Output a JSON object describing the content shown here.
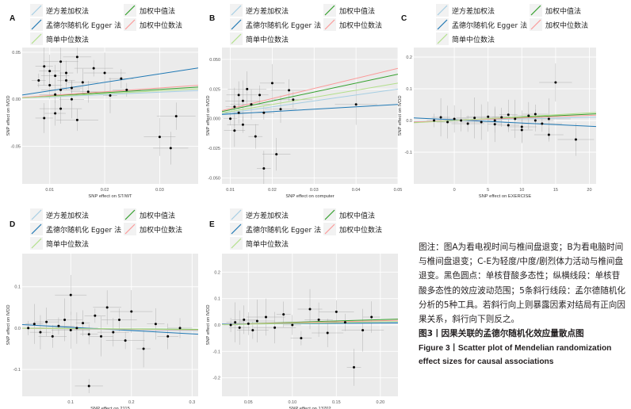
{
  "legend": {
    "items": [
      {
        "label": "逆方差加权法",
        "color": "#a6cee3"
      },
      {
        "label": "加权中值法",
        "color": "#33a02c"
      },
      {
        "label": "孟德尔随机化 Egger 法",
        "color": "#1f78b4"
      },
      {
        "label": "加权中位数法",
        "color": "#fb9a99"
      },
      {
        "label": "简单中位数法",
        "color": "#b2df8a"
      }
    ]
  },
  "panels": [
    {
      "letter": "A",
      "ylabel": "SNP effect on IVDD",
      "xlabel": "SNP effect on ST/WT",
      "xticks": [
        "0.01",
        "0.02",
        "0.03"
      ],
      "yticks": [
        "0.05",
        "0.00",
        "-0.05"
      ]
    },
    {
      "letter": "B",
      "ylabel": "SNP effect on IVDD",
      "xlabel": "SNP effect on computer",
      "xticks": [
        "0.01",
        "0.02",
        "0.03",
        "0.04",
        "0.05"
      ],
      "yticks": [
        "0.050",
        "0.025",
        "0.000",
        "-0.025",
        "-0.050"
      ]
    },
    {
      "letter": "C",
      "ylabel": "SNP effect on IVDD",
      "xlabel": "SNP effect on EXERCISE",
      "xticks": [
        "0",
        "5",
        "10",
        "15",
        "20"
      ],
      "yticks": [
        "0.2",
        "0.1",
        "0.0",
        "-0.1"
      ]
    },
    {
      "letter": "D",
      "ylabel": "SNP effect on IVDD",
      "xlabel": "SNP effect on 2115",
      "xticks": [
        "0.1",
        "0.2",
        "0.3"
      ],
      "yticks": [
        "0.1",
        "0.0",
        "-0.1"
      ]
    },
    {
      "letter": "E",
      "ylabel": "SNP effect on IVDD",
      "xlabel": "SNP effect on 13702",
      "xticks": [
        "0.05",
        "0.10",
        "0.15",
        "0.20"
      ],
      "yticks": [
        "0.2",
        "0.1",
        "0.0",
        "-0.1",
        "-0.2"
      ]
    }
  ],
  "caption": {
    "note": "图注：图A为看电视时间与椎间盘退变；B为看电脑时间与椎间盘退变；C-E为轻度/中度/剧烈体力活动与椎间盘退变。黑色圆点：单核苷酸多态性；纵横线段：单核苷酸多态性的效应波动范围；5条斜行线段：孟尔德随机化分析的5种工具。若斜行向上则暴露因素对结局有正向因果关系，斜行向下则反之。",
    "title_cn": "图3丨因果关联的孟德尔随机化效应量散点图",
    "title_en": "Figure 3丨Scatter plot of Mendelian randomization effect sizes for causal associations"
  },
  "chart_data": [
    {
      "type": "scatter",
      "panel": "A",
      "xlabel": "SNP effect on ST/WT",
      "ylabel": "SNP effect on IVDD",
      "xlim": [
        0.005,
        0.037
      ],
      "ylim": [
        -0.09,
        0.055
      ],
      "points": [
        [
          0.008,
          0.02
        ],
        [
          0.009,
          0.035
        ],
        [
          0.01,
          0.03
        ],
        [
          0.01,
          0.015
        ],
        [
          0.011,
          0.025
        ],
        [
          0.011,
          0.005
        ],
        [
          0.012,
          0.04
        ],
        [
          0.012,
          0.01
        ],
        [
          0.012,
          -0.01
        ],
        [
          0.013,
          0.028
        ],
        [
          0.013,
          0.02
        ],
        [
          0.014,
          0.012
        ],
        [
          0.014,
          0.0
        ],
        [
          0.015,
          0.045
        ],
        [
          0.016,
          0.018
        ],
        [
          0.017,
          0.008
        ],
        [
          0.018,
          0.033
        ],
        [
          0.02,
          0.028
        ],
        [
          0.021,
          0.004
        ],
        [
          0.009,
          -0.02
        ],
        [
          0.011,
          -0.015
        ],
        [
          0.023,
          0.022
        ],
        [
          0.024,
          0.01
        ],
        [
          0.03,
          -0.04
        ],
        [
          0.032,
          -0.052
        ],
        [
          0.033,
          -0.018
        ],
        [
          0.015,
          -0.022
        ]
      ],
      "lines": [
        {
          "name": "逆方差加权法",
          "slope": 0.25,
          "intercept": 0.0
        },
        {
          "name": "加权中值法",
          "slope": 0.35,
          "intercept": 0.0
        },
        {
          "name": "孟德尔随机化 Egger 法",
          "slope": 0.9,
          "intercept": 0.0
        },
        {
          "name": "加权中位数法",
          "slope": 0.4,
          "intercept": 0.0
        },
        {
          "name": "简单中位数法",
          "slope": 0.3,
          "intercept": 0.0
        }
      ]
    },
    {
      "type": "scatter",
      "panel": "B",
      "xlabel": "SNP effect on computer",
      "ylabel": "SNP effect on IVDD",
      "xlim": [
        0.008,
        0.05
      ],
      "ylim": [
        -0.055,
        0.06
      ],
      "points": [
        [
          0.01,
          0.0
        ],
        [
          0.011,
          0.01
        ],
        [
          0.011,
          -0.01
        ],
        [
          0.012,
          0.02
        ],
        [
          0.012,
          0.005
        ],
        [
          0.013,
          -0.005
        ],
        [
          0.013,
          0.015
        ],
        [
          0.014,
          0.025
        ],
        [
          0.015,
          0.012
        ],
        [
          0.016,
          -0.015
        ],
        [
          0.017,
          0.02
        ],
        [
          0.018,
          0.005
        ],
        [
          0.02,
          0.03
        ],
        [
          0.021,
          -0.03
        ],
        [
          0.022,
          0.008
        ],
        [
          0.024,
          0.024
        ],
        [
          0.025,
          0.016
        ],
        [
          0.04,
          0.012
        ],
        [
          0.018,
          -0.042
        ]
      ],
      "lines": [
        {
          "name": "逆方差加权法",
          "slope": 0.5,
          "intercept": 0.0
        },
        {
          "name": "加权中值法",
          "slope": 0.75,
          "intercept": 0.0
        },
        {
          "name": "孟德尔随机化 Egger 法",
          "slope": 0.2,
          "intercept": 0.002
        },
        {
          "name": "加权中位数法",
          "slope": 0.85,
          "intercept": 0.0
        },
        {
          "name": "简单中位数法",
          "slope": 0.6,
          "intercept": 0.0
        }
      ]
    },
    {
      "type": "scatter",
      "panel": "C",
      "xlabel": "SNP effect on EXERCISE",
      "ylabel": "SNP effect on IVDD",
      "xlim": [
        -6,
        21
      ],
      "ylim": [
        -0.2,
        0.23
      ],
      "points": [
        [
          -3,
          0.0
        ],
        [
          -2,
          0.01
        ],
        [
          -1,
          -0.005
        ],
        [
          0,
          0.005
        ],
        [
          1,
          0.0
        ],
        [
          2,
          -0.01
        ],
        [
          3,
          0.008
        ],
        [
          4,
          -0.005
        ],
        [
          5,
          0.012
        ],
        [
          6,
          0.0
        ],
        [
          7,
          0.01
        ],
        [
          8,
          -0.015
        ],
        [
          9,
          0.005
        ],
        [
          10,
          -0.02
        ],
        [
          11,
          0.015
        ],
        [
          12,
          0.0
        ],
        [
          13,
          -0.01
        ],
        [
          14,
          0.005
        ],
        [
          6,
          -0.012
        ],
        [
          8,
          0.018
        ],
        [
          10,
          -0.03
        ],
        [
          12,
          0.02
        ],
        [
          14,
          -0.045
        ],
        [
          15,
          0.12
        ],
        [
          18,
          -0.06
        ]
      ],
      "lines": [
        {
          "name": "逆方差加权法",
          "slope": 0.0005,
          "intercept": 0.0
        },
        {
          "name": "加权中值法",
          "slope": 0.001,
          "intercept": 0.0
        },
        {
          "name": "孟德尔随机化 Egger 法",
          "slope": -0.001,
          "intercept": 0.002
        },
        {
          "name": "加权中位数法",
          "slope": 0.0008,
          "intercept": 0.0
        },
        {
          "name": "简单中位数法",
          "slope": 0.0012,
          "intercept": 0.0
        }
      ]
    },
    {
      "type": "scatter",
      "panel": "D",
      "xlabel": "SNP effect on 2115",
      "ylabel": "SNP effect on IVDD",
      "xlim": [
        0.02,
        0.31
      ],
      "ylim": [
        -0.165,
        0.18
      ],
      "points": [
        [
          0.03,
          0.0
        ],
        [
          0.04,
          0.01
        ],
        [
          0.05,
          -0.01
        ],
        [
          0.06,
          0.015
        ],
        [
          0.07,
          -0.02
        ],
        [
          0.08,
          0.005
        ],
        [
          0.09,
          0.02
        ],
        [
          0.1,
          -0.005
        ],
        [
          0.11,
          0.0
        ],
        [
          0.12,
          0.012
        ],
        [
          0.13,
          -0.015
        ],
        [
          0.14,
          0.03
        ],
        [
          0.15,
          -0.02
        ],
        [
          0.16,
          0.05
        ],
        [
          0.17,
          -0.01
        ],
        [
          0.18,
          0.02
        ],
        [
          0.19,
          -0.03
        ],
        [
          0.2,
          0.04
        ],
        [
          0.22,
          -0.05
        ],
        [
          0.24,
          0.01
        ],
        [
          0.26,
          -0.02
        ],
        [
          0.28,
          0.0
        ],
        [
          0.13,
          -0.14
        ],
        [
          0.1,
          0.08
        ]
      ],
      "lines": [
        {
          "name": "逆方差加权法",
          "slope": -0.02,
          "intercept": 0.0
        },
        {
          "name": "加权中值法",
          "slope": -0.01,
          "intercept": 0.0
        },
        {
          "name": "孟德尔随机化 Egger 法",
          "slope": -0.08,
          "intercept": 0.01
        },
        {
          "name": "加权中位数法",
          "slope": -0.015,
          "intercept": 0.0
        },
        {
          "name": "简单中位数法",
          "slope": -0.012,
          "intercept": 0.0
        }
      ]
    },
    {
      "type": "scatter",
      "panel": "E",
      "xlabel": "SNP effect on 13702",
      "ylabel": "SNP effect on IVDD",
      "xlim": [
        0.02,
        0.22
      ],
      "ylim": [
        -0.27,
        0.27
      ],
      "points": [
        [
          0.03,
          0.0
        ],
        [
          0.035,
          0.01
        ],
        [
          0.04,
          -0.01
        ],
        [
          0.045,
          0.02
        ],
        [
          0.05,
          0.005
        ],
        [
          0.055,
          -0.02
        ],
        [
          0.06,
          0.015
        ],
        [
          0.07,
          0.03
        ],
        [
          0.08,
          -0.01
        ],
        [
          0.09,
          0.04
        ],
        [
          0.1,
          0.0
        ],
        [
          0.11,
          -0.05
        ],
        [
          0.12,
          0.06
        ],
        [
          0.13,
          0.02
        ],
        [
          0.14,
          -0.03
        ],
        [
          0.15,
          0.05
        ],
        [
          0.16,
          0.01
        ],
        [
          0.18,
          -0.02
        ],
        [
          0.17,
          -0.16
        ],
        [
          0.19,
          0.03
        ]
      ],
      "lines": [
        {
          "name": "逆方差加权法",
          "slope": 0.05,
          "intercept": 0.0
        },
        {
          "name": "加权中值法",
          "slope": 0.1,
          "intercept": 0.0
        },
        {
          "name": "孟德尔随机化 Egger 法",
          "slope": 0.02,
          "intercept": 0.003
        },
        {
          "name": "加权中位数法",
          "slope": 0.08,
          "intercept": 0.0
        },
        {
          "name": "简单中位数法",
          "slope": 0.06,
          "intercept": 0.0
        }
      ]
    }
  ]
}
